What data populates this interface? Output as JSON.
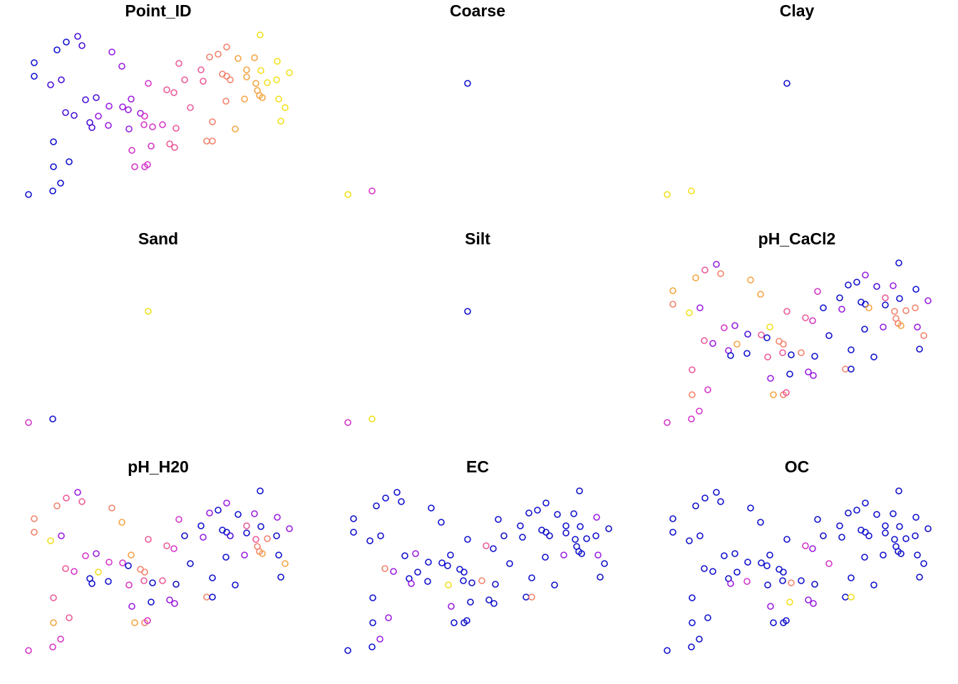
{
  "chart_data": {
    "type": "scatter",
    "x": [
      40,
      74,
      85,
      75,
      97,
      75,
      48,
      48,
      80,
      93,
      109,
      115,
      71,
      86,
      92,
      104,
      120,
      135,
      126,
      129,
      138,
      152,
      153,
      157,
      171,
      172,
      180,
      184,
      181,
      197,
      203,
      202,
      214,
      228,
      185,
      212,
      189,
      203,
      207,
      208,
      234,
      244,
      238,
      245,
      247,
      251,
      259,
      267,
      282,
      285,
      294,
      298,
      290,
      298,
      306,
      318,
      312,
      318,
      323,
      317,
      330,
      334,
      343,
      346,
      346,
      357,
      359,
      361,
      364,
      368,
      365,
      366,
      375,
      388,
      389,
      391,
      394,
      400,
      406
    ],
    "y": [
      273,
      268,
      257,
      234,
      227,
      199,
      88,
      107,
      70,
      59,
      51,
      64,
      119,
      112,
      158,
      162,
      140,
      137,
      172,
      179,
      163,
      176,
      149,
      73,
      93,
      150,
      154,
      139,
      181,
      159,
      163,
      175,
      178,
      175,
      211,
      205,
      234,
      234,
      231,
      117,
      126,
      130,
      202,
      207,
      180,
      89,
      112,
      151,
      98,
      114,
      80,
      171,
      198,
      198,
      76,
      66,
      104,
      107,
      112,
      142,
      181,
      82,
      139,
      98,
      108,
      81,
      117,
      127,
      134,
      137,
      49,
      99,
      116,
      112,
      86,
      139,
      170,
      151,
      102
    ],
    "palette": [
      "#1010cc",
      "#4a10d8",
      "#9a1de0",
      "#d535c8",
      "#ec5a9a",
      "#f3826c",
      "#f5a543",
      "#f2e01e"
    ],
    "panels": [
      {
        "title": "Point_ID",
        "classes": [
          0,
          0,
          0,
          0,
          0,
          0,
          0,
          0,
          0,
          0,
          1,
          1,
          1,
          1,
          1,
          1,
          1,
          1,
          1,
          1,
          2,
          2,
          2,
          2,
          2,
          2,
          2,
          2,
          2,
          2,
          3,
          3,
          3,
          3,
          3,
          3,
          3,
          3,
          3,
          3,
          4,
          4,
          4,
          4,
          4,
          4,
          4,
          4,
          4,
          4,
          5,
          5,
          5,
          5,
          5,
          5,
          5,
          5,
          5,
          5,
          6,
          6,
          6,
          6,
          6,
          6,
          6,
          6,
          6,
          6,
          7,
          7,
          7,
          7,
          7,
          7,
          7,
          7,
          7
        ]
      },
      {
        "title": "Coarse",
        "classes": [
          7,
          3,
          null,
          null,
          null,
          null,
          null,
          null,
          null,
          null,
          null,
          null,
          null,
          null,
          null,
          null,
          null,
          null,
          null,
          null,
          null,
          null,
          null,
          null,
          null,
          null,
          null,
          null,
          null,
          null,
          null,
          null,
          null,
          null,
          null,
          null,
          null,
          null,
          null,
          0,
          null,
          null,
          null,
          null,
          null,
          null,
          null,
          null,
          null,
          null,
          null,
          null,
          null,
          null,
          null,
          null,
          null,
          null,
          null,
          null,
          null,
          null,
          null,
          null,
          null,
          null,
          null,
          null,
          null,
          null,
          null,
          null,
          null,
          null,
          null,
          null,
          null,
          null,
          null
        ]
      },
      {
        "title": "Clay",
        "classes": [
          7,
          7,
          null,
          null,
          null,
          null,
          null,
          null,
          null,
          null,
          null,
          null,
          null,
          null,
          null,
          null,
          null,
          null,
          null,
          null,
          null,
          null,
          null,
          null,
          null,
          null,
          null,
          null,
          null,
          null,
          null,
          null,
          null,
          null,
          null,
          null,
          null,
          null,
          null,
          0,
          null,
          null,
          null,
          null,
          null,
          null,
          null,
          null,
          null,
          null,
          null,
          null,
          null,
          null,
          null,
          null,
          null,
          null,
          null,
          null,
          null,
          null,
          null,
          null,
          null,
          null,
          null,
          null,
          null,
          null,
          null,
          null,
          null,
          null,
          null,
          null,
          null,
          null,
          null
        ]
      },
      {
        "title": "Sand",
        "classes": [
          3,
          0,
          null,
          null,
          null,
          null,
          null,
          null,
          null,
          null,
          null,
          null,
          null,
          null,
          null,
          null,
          null,
          null,
          null,
          null,
          null,
          null,
          null,
          null,
          null,
          null,
          null,
          null,
          null,
          null,
          null,
          null,
          null,
          null,
          null,
          null,
          null,
          null,
          null,
          7,
          null,
          null,
          null,
          null,
          null,
          null,
          null,
          null,
          null,
          null,
          null,
          null,
          null,
          null,
          null,
          null,
          null,
          null,
          null,
          null,
          null,
          null,
          null,
          null,
          null,
          null,
          null,
          null,
          null,
          null,
          null,
          null,
          null,
          null,
          null,
          null,
          null,
          null,
          null
        ]
      },
      {
        "title": "Silt",
        "classes": [
          3,
          7,
          null,
          null,
          null,
          null,
          null,
          null,
          null,
          null,
          null,
          null,
          null,
          null,
          null,
          null,
          null,
          null,
          null,
          null,
          null,
          null,
          null,
          null,
          null,
          null,
          null,
          null,
          null,
          null,
          null,
          null,
          null,
          null,
          null,
          null,
          null,
          null,
          null,
          0,
          null,
          null,
          null,
          null,
          null,
          null,
          null,
          null,
          null,
          null,
          null,
          null,
          null,
          null,
          null,
          null,
          null,
          null,
          null,
          null,
          null,
          null,
          null,
          null,
          null,
          null,
          null,
          null,
          null,
          null,
          null,
          null,
          null,
          null,
          null,
          null,
          null,
          null,
          null
        ]
      },
      {
        "title": "pH_CaCl2",
        "classes": [
          3,
          3,
          3,
          5,
          3,
          4,
          6,
          5,
          6,
          4,
          2,
          5,
          7,
          2,
          4,
          2,
          3,
          2,
          2,
          0,
          6,
          0,
          1,
          6,
          6,
          4,
          0,
          7,
          4,
          5,
          5,
          4,
          0,
          5,
          2,
          0,
          6,
          5,
          4,
          4,
          4,
          3,
          2,
          2,
          0,
          3,
          0,
          0,
          0,
          2,
          0,
          0,
          5,
          0,
          0,
          2,
          0,
          0,
          6,
          0,
          0,
          1,
          2,
          4,
          0,
          2,
          5,
          5,
          5,
          6,
          0,
          0,
          5,
          5,
          0,
          2,
          0,
          5,
          2
        ]
      },
      {
        "title": "pH_H20",
        "classes": [
          3,
          3,
          3,
          6,
          4,
          4,
          5,
          5,
          5,
          4,
          2,
          4,
          7,
          2,
          4,
          3,
          3,
          2,
          0,
          0,
          7,
          0,
          3,
          5,
          6,
          3,
          0,
          6,
          3,
          5,
          5,
          4,
          0,
          4,
          2,
          0,
          6,
          5,
          3,
          4,
          4,
          3,
          2,
          2,
          0,
          3,
          0,
          0,
          0,
          2,
          2,
          0,
          5,
          0,
          0,
          2,
          0,
          0,
          1,
          0,
          0,
          0,
          2,
          4,
          0,
          2,
          4,
          5,
          5,
          6,
          0,
          0,
          5,
          0,
          2,
          0,
          0,
          6,
          2
        ]
      },
      {
        "title": "EC",
        "classes": [
          0,
          0,
          2,
          0,
          2,
          0,
          0,
          0,
          0,
          0,
          0,
          0,
          0,
          0,
          5,
          2,
          0,
          2,
          0,
          2,
          0,
          0,
          0,
          0,
          0,
          0,
          0,
          0,
          7,
          0,
          0,
          0,
          0,
          5,
          2,
          0,
          0,
          0,
          0,
          0,
          4,
          0,
          0,
          0,
          0,
          0,
          0,
          0,
          0,
          0,
          0,
          0,
          0,
          5,
          0,
          0,
          0,
          0,
          0,
          0,
          0,
          0,
          2,
          0,
          0,
          0,
          0,
          0,
          0,
          0,
          0,
          0,
          0,
          0,
          2,
          2,
          0,
          0,
          0
        ]
      },
      {
        "title": "OC",
        "classes": [
          0,
          0,
          0,
          0,
          0,
          0,
          0,
          0,
          0,
          0,
          0,
          0,
          0,
          0,
          0,
          0,
          0,
          0,
          0,
          2,
          0,
          3,
          0,
          0,
          0,
          0,
          0,
          0,
          0,
          0,
          0,
          0,
          5,
          0,
          2,
          7,
          0,
          0,
          0,
          0,
          3,
          2,
          2,
          2,
          0,
          0,
          0,
          3,
          0,
          0,
          0,
          0,
          0,
          7,
          0,
          0,
          0,
          0,
          0,
          0,
          0,
          0,
          0,
          0,
          0,
          0,
          0,
          0,
          0,
          0,
          0,
          0,
          0,
          0,
          0,
          0,
          0,
          0,
          0
        ]
      }
    ]
  }
}
